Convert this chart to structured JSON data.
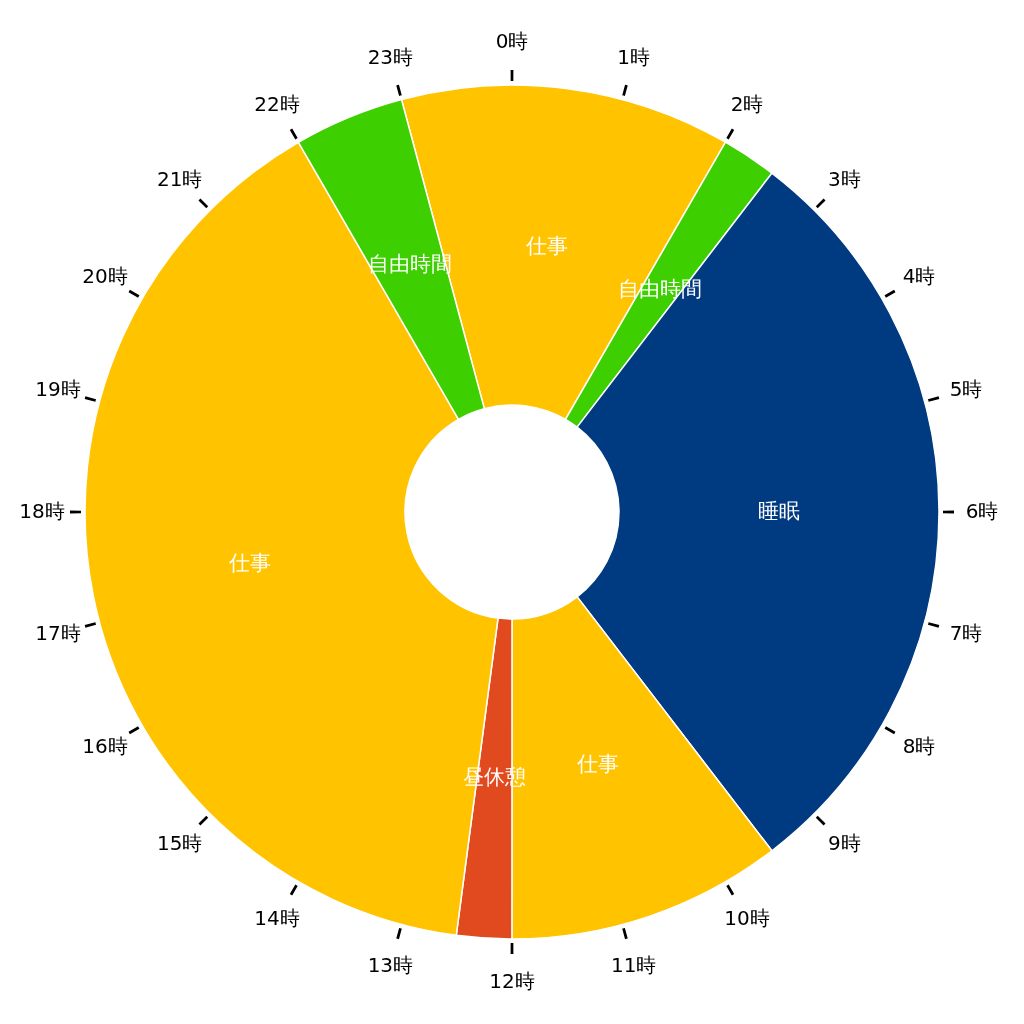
{
  "chart_data": {
    "type": "donut",
    "categories": [
      "仕事",
      "自由時間",
      "睡眠",
      "仕事",
      "昼休憩",
      "仕事",
      "自由時間"
    ],
    "values": [
      12.5,
      2.08,
      29.17,
      10.42,
      2.08,
      39.58,
      4.17
    ],
    "colors": [
      "#ffc300",
      "#3dcf00",
      "#003a80",
      "#ffc300",
      "#e04a1e",
      "#ffc300",
      "#3dcf00"
    ],
    "annotations": [
      "0時",
      "1時",
      "2時",
      "3時",
      "4時",
      "5時",
      "6時",
      "7時",
      "8時",
      "9時",
      "10時",
      "11時",
      "12時",
      "13時",
      "14時",
      "15時",
      "16時",
      "17時",
      "18時",
      "19時",
      "20時",
      "21時",
      "22時",
      "23時"
    ]
  }
}
